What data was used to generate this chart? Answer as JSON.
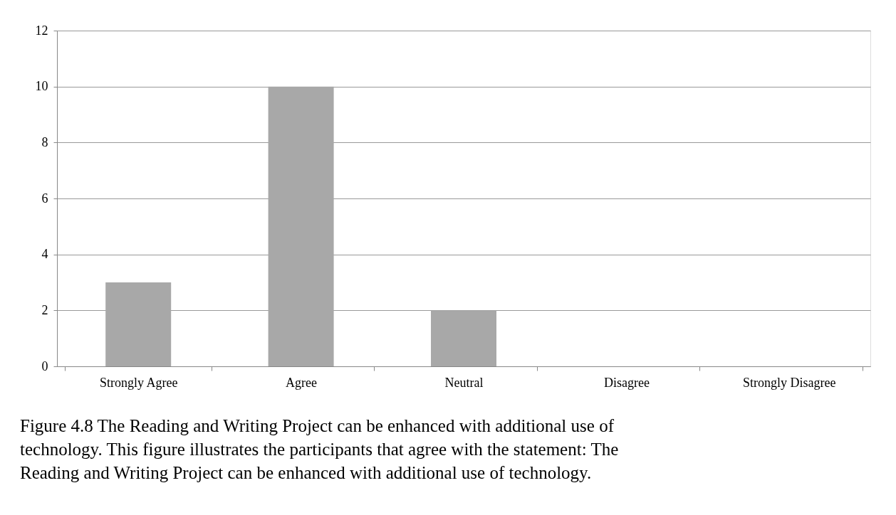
{
  "chart_data": {
    "type": "bar",
    "categories": [
      "Strongly Agree",
      "Agree",
      "Neutral",
      "Disagree",
      "Strongly Disagree"
    ],
    "values": [
      3,
      10,
      2,
      0,
      0
    ],
    "color": "#a8a8a8",
    "ylim": [
      0,
      12
    ],
    "yticks": [
      0,
      2,
      4,
      6,
      8,
      10,
      12
    ],
    "grid": "y",
    "annotations": [
      "Figure 4.8 The Reading and Writing Project can be enhanced with additional use of technology.  This figure illustrates the participants that agree with the statement: The Reading and Writing Project can be enhanced with additional use of technology."
    ]
  }
}
